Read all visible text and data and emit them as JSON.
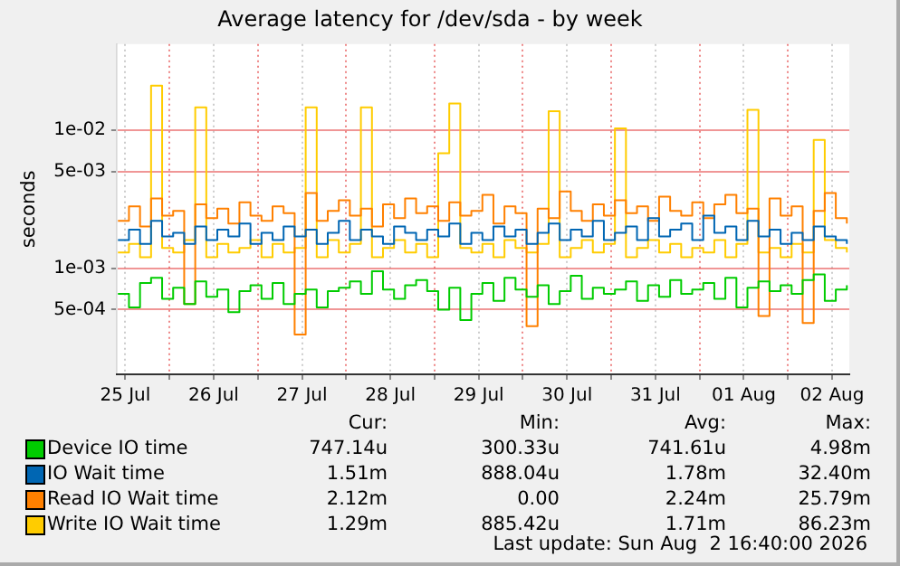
{
  "chart_data": {
    "type": "step",
    "title": "Average latency for /dev/sda - by week",
    "ylabel": "seconds",
    "log": "y",
    "grid": true,
    "legend": "bottom",
    "marker": "none",
    "ylim": [
      0.00017,
      0.042
    ],
    "yticks": [
      {
        "value": 0.01,
        "label": "1e-02"
      },
      {
        "value": 0.005,
        "label": "5e-03"
      },
      {
        "value": 0.001,
        "label": "1e-03"
      },
      {
        "value": 0.0005,
        "label": "5e-04"
      }
    ],
    "xlim": [
      "2026-07-25T09:40",
      "2026-08-02T16:40"
    ],
    "xticks": [
      {
        "value": "2026-07-25T12:00",
        "label": "25 Jul"
      },
      {
        "value": "2026-07-26T00:00",
        "label": null
      },
      {
        "value": "2026-07-26T12:00",
        "label": "26 Jul"
      },
      {
        "value": "2026-07-27T00:00",
        "label": null
      },
      {
        "value": "2026-07-27T12:00",
        "label": "27 Jul"
      },
      {
        "value": "2026-07-28T00:00",
        "label": null
      },
      {
        "value": "2026-07-28T12:00",
        "label": "28 Jul"
      },
      {
        "value": "2026-07-29T00:00",
        "label": null
      },
      {
        "value": "2026-07-29T12:00",
        "label": "29 Jul"
      },
      {
        "value": "2026-07-30T00:00",
        "label": null
      },
      {
        "value": "2026-07-30T12:00",
        "label": "30 Jul"
      },
      {
        "value": "2026-07-31T00:00",
        "label": null
      },
      {
        "value": "2026-07-31T12:00",
        "label": "31 Jul"
      },
      {
        "value": "2026-08-01T00:00",
        "label": null
      },
      {
        "value": "2026-08-01T12:00",
        "label": "01 Aug"
      },
      {
        "value": "2026-08-02T00:00",
        "label": null
      },
      {
        "value": "2026-08-02T12:00",
        "label": "02 Aug"
      }
    ],
    "x": [
      "2026-07-25T10:00",
      "2026-07-25T13:00",
      "2026-07-25T16:00",
      "2026-07-25T19:00",
      "2026-07-25T22:00",
      "2026-07-26T01:00",
      "2026-07-26T04:00",
      "2026-07-26T07:00",
      "2026-07-26T10:00",
      "2026-07-26T13:00",
      "2026-07-26T16:00",
      "2026-07-26T19:00",
      "2026-07-26T22:00",
      "2026-07-27T01:00",
      "2026-07-27T04:00",
      "2026-07-27T07:00",
      "2026-07-27T10:00",
      "2026-07-27T13:00",
      "2026-07-27T16:00",
      "2026-07-27T19:00",
      "2026-07-27T22:00",
      "2026-07-28T01:00",
      "2026-07-28T04:00",
      "2026-07-28T07:00",
      "2026-07-28T10:00",
      "2026-07-28T13:00",
      "2026-07-28T16:00",
      "2026-07-28T19:00",
      "2026-07-28T22:00",
      "2026-07-29T01:00",
      "2026-07-29T04:00",
      "2026-07-29T07:00",
      "2026-07-29T10:00",
      "2026-07-29T13:00",
      "2026-07-29T16:00",
      "2026-07-29T19:00",
      "2026-07-29T22:00",
      "2026-07-30T01:00",
      "2026-07-30T04:00",
      "2026-07-30T07:00",
      "2026-07-30T10:00",
      "2026-07-30T13:00",
      "2026-07-30T16:00",
      "2026-07-30T19:00",
      "2026-07-30T22:00",
      "2026-07-31T01:00",
      "2026-07-31T04:00",
      "2026-07-31T07:00",
      "2026-07-31T10:00",
      "2026-07-31T13:00",
      "2026-07-31T16:00",
      "2026-07-31T19:00",
      "2026-07-31T22:00",
      "2026-08-01T01:00",
      "2026-08-01T04:00",
      "2026-08-01T07:00",
      "2026-08-01T10:00",
      "2026-08-01T13:00",
      "2026-08-01T16:00",
      "2026-08-01T19:00",
      "2026-08-01T22:00",
      "2026-08-02T01:00",
      "2026-08-02T04:00",
      "2026-08-02T07:00",
      "2026-08-02T10:00",
      "2026-08-02T13:00",
      "2026-08-02T16:00"
    ],
    "series": [
      {
        "name": "Device IO time",
        "color": "#00cc00",
        "values": [
          0.00065,
          0.00052,
          0.00078,
          0.00085,
          0.0006,
          0.00072,
          0.00055,
          0.0008,
          0.00062,
          0.0007,
          0.00048,
          0.00068,
          0.00075,
          0.0006,
          0.00078,
          0.00055,
          0.00065,
          0.0007,
          0.00052,
          0.00068,
          0.00072,
          0.0008,
          0.00065,
          0.00095,
          0.0007,
          0.0006,
          0.00075,
          0.00082,
          0.00068,
          0.0005,
          0.00072,
          0.00042,
          0.00065,
          0.00078,
          0.00058,
          0.00085,
          0.0007,
          0.00062,
          0.00075,
          0.00055,
          0.00068,
          0.00088,
          0.0006,
          0.00072,
          0.00065,
          0.0007,
          0.0008,
          0.00058,
          0.00075,
          0.00062,
          0.00082,
          0.00065,
          0.0007,
          0.00078,
          0.0006,
          0.00085,
          0.00052,
          0.00072,
          0.0008,
          0.00068,
          0.00075,
          0.00065,
          0.00082,
          0.0009,
          0.00058,
          0.0007,
          0.00075
        ]
      },
      {
        "name": "IO Wait time",
        "color": "#0066b3",
        "values": [
          0.0016,
          0.0019,
          0.0015,
          0.0022,
          0.0017,
          0.0018,
          0.0015,
          0.002,
          0.0016,
          0.0019,
          0.0017,
          0.0021,
          0.0015,
          0.0018,
          0.0016,
          0.002,
          0.0017,
          0.0019,
          0.0015,
          0.0018,
          0.0022,
          0.0016,
          0.0019,
          0.0017,
          0.0015,
          0.002,
          0.0018,
          0.0016,
          0.0019,
          0.0017,
          0.0021,
          0.0015,
          0.0018,
          0.0016,
          0.002,
          0.0017,
          0.0019,
          0.0015,
          0.0018,
          0.0021,
          0.0016,
          0.0019,
          0.0017,
          0.0022,
          0.0016,
          0.0018,
          0.002,
          0.0016,
          0.0023,
          0.0017,
          0.0019,
          0.0021,
          0.0016,
          0.0024,
          0.0018,
          0.002,
          0.0016,
          0.0022,
          0.0017,
          0.0019,
          0.0015,
          0.0018,
          0.0016,
          0.002,
          0.0017,
          0.0016,
          0.0015
        ]
      },
      {
        "name": "Read IO Wait time",
        "color": "#ff8000",
        "values": [
          0.0022,
          0.0028,
          0.002,
          0.0032,
          0.0024,
          0.0026,
          0.00055,
          0.0029,
          0.0023,
          0.0027,
          0.0021,
          0.003,
          0.0024,
          0.0022,
          0.0028,
          0.0025,
          0.00033,
          0.0035,
          0.0022,
          0.0026,
          0.0031,
          0.0024,
          0.0027,
          0.002,
          0.0029,
          0.0023,
          0.0032,
          0.0025,
          0.0028,
          0.0022,
          0.003,
          0.0024,
          0.0026,
          0.0034,
          0.0021,
          0.0028,
          0.0025,
          0.00038,
          0.0027,
          0.0023,
          0.0036,
          0.0026,
          0.0022,
          0.0029,
          0.0024,
          0.0031,
          0.0025,
          0.0028,
          0.0022,
          0.0033,
          0.0026,
          0.0024,
          0.003,
          0.0023,
          0.0029,
          0.0034,
          0.0025,
          0.0027,
          0.00045,
          0.0032,
          0.0024,
          0.0028,
          0.0004,
          0.0026,
          0.0035,
          0.0023,
          0.0021
        ]
      },
      {
        "name": "Write IO Wait time",
        "color": "#ffcc00",
        "values": [
          0.0013,
          0.0015,
          0.0012,
          0.021,
          0.0014,
          0.0013,
          0.0016,
          0.0146,
          0.0012,
          0.0015,
          0.0013,
          0.0014,
          0.0016,
          0.0012,
          0.0015,
          0.0013,
          0.0014,
          0.0146,
          0.0012,
          0.0016,
          0.0013,
          0.0015,
          0.0146,
          0.0012,
          0.0014,
          0.0016,
          0.0013,
          0.0015,
          0.0012,
          0.0068,
          0.0156,
          0.0014,
          0.0013,
          0.0015,
          0.0012,
          0.0016,
          0.0014,
          0.0013,
          0.0015,
          0.0137,
          0.0012,
          0.0014,
          0.0016,
          0.0013,
          0.0015,
          0.0103,
          0.0012,
          0.0014,
          0.0016,
          0.0013,
          0.0015,
          0.0012,
          0.0014,
          0.0013,
          0.0016,
          0.0012,
          0.0015,
          0.014,
          0.0013,
          0.0014,
          0.0012,
          0.0015,
          0.0013,
          0.0085,
          0.0016,
          0.0014,
          0.0013
        ]
      }
    ],
    "annotations": [
      "Cur:",
      "Min:",
      "Avg:",
      "Max:",
      "747.14u",
      "300.33u",
      "741.61u",
      "4.98m",
      "1.51m",
      "888.04u",
      "1.78m",
      "32.40m",
      "2.12m",
      "0.00",
      "2.24m",
      "25.79m",
      "1.29m",
      "885.42u",
      "1.71m",
      "86.23m",
      "Last update: Sun Aug  2 16:40:00 2026"
    ]
  }
}
